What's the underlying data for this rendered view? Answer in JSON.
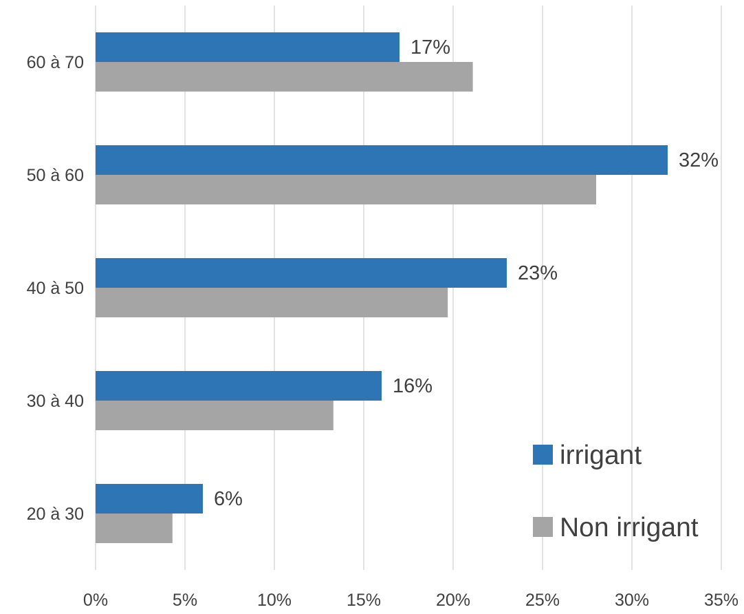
{
  "chart_data": {
    "type": "bar",
    "orientation": "horizontal",
    "title": "",
    "categories": [
      "20 à 30",
      "30 à 40",
      "40 à 50",
      "50 à 60",
      "60 à 70"
    ],
    "series": [
      {
        "name": "irrigant",
        "color": "#2e75b6",
        "values": [
          6,
          16,
          23,
          32,
          17
        ],
        "labels": [
          "6%",
          "16%",
          "23%",
          "32%",
          "17%"
        ]
      },
      {
        "name": "Non irrigant",
        "color": "#a5a5a5",
        "values": [
          4.3,
          13.3,
          19.7,
          28,
          21.1
        ]
      }
    ],
    "xlim": [
      0,
      35
    ],
    "xticks": [
      0,
      5,
      10,
      15,
      20,
      25,
      30,
      35
    ],
    "xtick_labels": [
      "0%",
      "5%",
      "10%",
      "15%",
      "20%",
      "25%",
      "30%",
      "35%"
    ],
    "grid": true,
    "legend_position": "bottom-right"
  }
}
